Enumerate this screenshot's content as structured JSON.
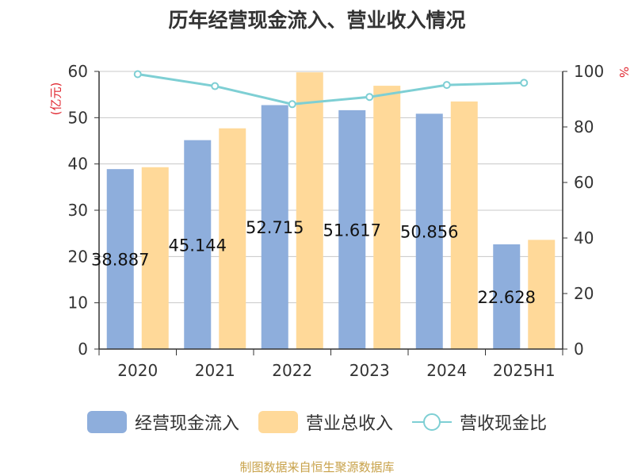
{
  "chart_data": {
    "type": "bar",
    "title": "历年经营现金流入、营业收入情况",
    "categories": [
      "2020",
      "2021",
      "2022",
      "2023",
      "2024",
      "2025H1"
    ],
    "left_axis": {
      "unit_label": "(亿元)",
      "ylim": [
        0,
        60
      ],
      "ticks": [
        "0",
        "10",
        "20",
        "30",
        "40",
        "50",
        "60"
      ]
    },
    "right_axis": {
      "unit_label": "%",
      "ylim": [
        0,
        100
      ],
      "ticks": [
        "0",
        "20",
        "40",
        "60",
        "80",
        "100"
      ]
    },
    "series": [
      {
        "name": "经营现金流入",
        "type": "bar",
        "axis": "left",
        "color": "#8eaedc",
        "values": [
          38.887,
          45.144,
          52.715,
          51.617,
          50.856,
          22.628
        ],
        "labels": [
          "38.887",
          "45.144",
          "52.715",
          "51.617",
          "50.856",
          "22.628"
        ]
      },
      {
        "name": "营业总收入",
        "type": "bar",
        "axis": "left",
        "color": "#ffd999",
        "values": [
          39.3,
          47.7,
          59.8,
          56.9,
          53.5,
          23.6
        ]
      },
      {
        "name": "营收现金比",
        "type": "line",
        "axis": "right",
        "color": "#7ecfd4",
        "values": [
          99.0,
          94.7,
          88.2,
          90.8,
          95.1,
          95.9
        ]
      }
    ],
    "grid": true,
    "legend_position": "bottom"
  },
  "source_text": "制图数据来自恒生聚源数据库"
}
